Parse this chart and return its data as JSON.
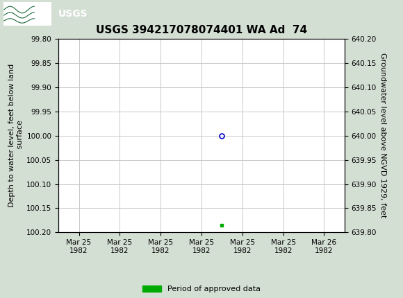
{
  "title": "USGS 394217078074401 WA Ad  74",
  "left_ylabel": "Depth to water level, feet below land\n surface",
  "right_ylabel": "Groundwater level above NGVD 1929, feet",
  "ylim_left_top": 99.8,
  "ylim_left_bottom": 100.2,
  "ylim_right_top": 640.2,
  "ylim_right_bottom": 639.8,
  "left_yticks": [
    99.8,
    99.85,
    99.9,
    99.95,
    100.0,
    100.05,
    100.1,
    100.15,
    100.2
  ],
  "right_yticks": [
    640.2,
    640.15,
    640.1,
    640.05,
    640.0,
    639.95,
    639.9,
    639.85,
    639.8
  ],
  "data_point_x": 3.5,
  "data_point_y": 100.0,
  "green_point_x": 3.5,
  "green_point_y": 100.185,
  "x_tick_labels": [
    "Mar 25\n1982",
    "Mar 25\n1982",
    "Mar 25\n1982",
    "Mar 25\n1982",
    "Mar 25\n1982",
    "Mar 25\n1982",
    "Mar 26\n1982"
  ],
  "x_ticks": [
    0,
    1,
    2,
    3,
    4,
    5,
    6
  ],
  "xlim": [
    -0.5,
    6.5
  ],
  "bg_color": "#d4dfd4",
  "plot_bg": "#ffffff",
  "grid_color": "#c8c8c8",
  "header_color": "#1a6b3a",
  "blue_circle_color": "#0000cc",
  "green_marker_color": "#00aa00",
  "legend_label": "Period of approved data",
  "title_fontsize": 11,
  "tick_fontsize": 7.5,
  "ylabel_fontsize": 8
}
